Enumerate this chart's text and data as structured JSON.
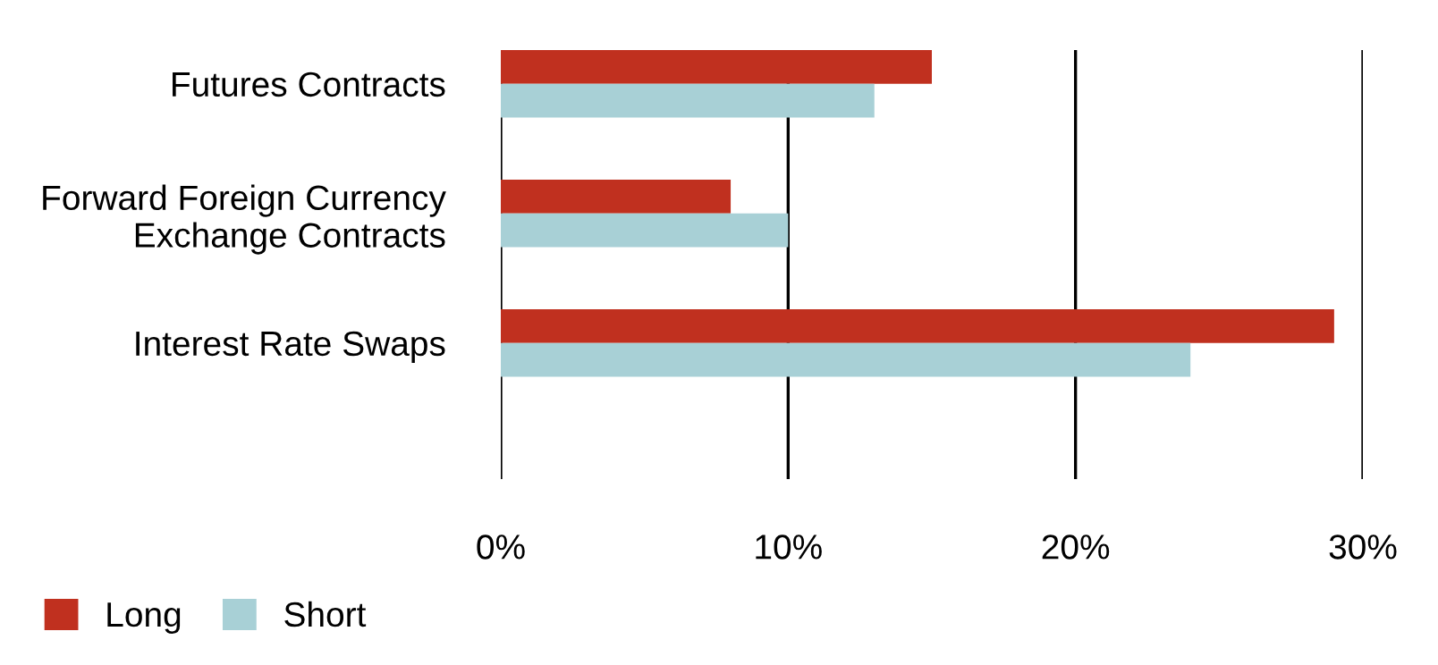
{
  "chart_data": {
    "type": "bar",
    "orientation": "horizontal",
    "categories": [
      "Futures Contracts",
      "Forward Foreign Currency\nExchange Contracts",
      "Interest Rate Swaps"
    ],
    "series": [
      {
        "name": "Long",
        "color": "#c0301f",
        "values": [
          15,
          8,
          29
        ]
      },
      {
        "name": "Short",
        "color": "#a8d0d6",
        "values": [
          13,
          10,
          24
        ]
      }
    ],
    "xlim": [
      0,
      30
    ],
    "xticks": [
      {
        "value": 0,
        "label": "0%"
      },
      {
        "value": 10,
        "label": "10%"
      },
      {
        "value": 20,
        "label": "20%"
      },
      {
        "value": 30,
        "label": "30%"
      }
    ],
    "grid": "x",
    "legend": "bottom left"
  }
}
